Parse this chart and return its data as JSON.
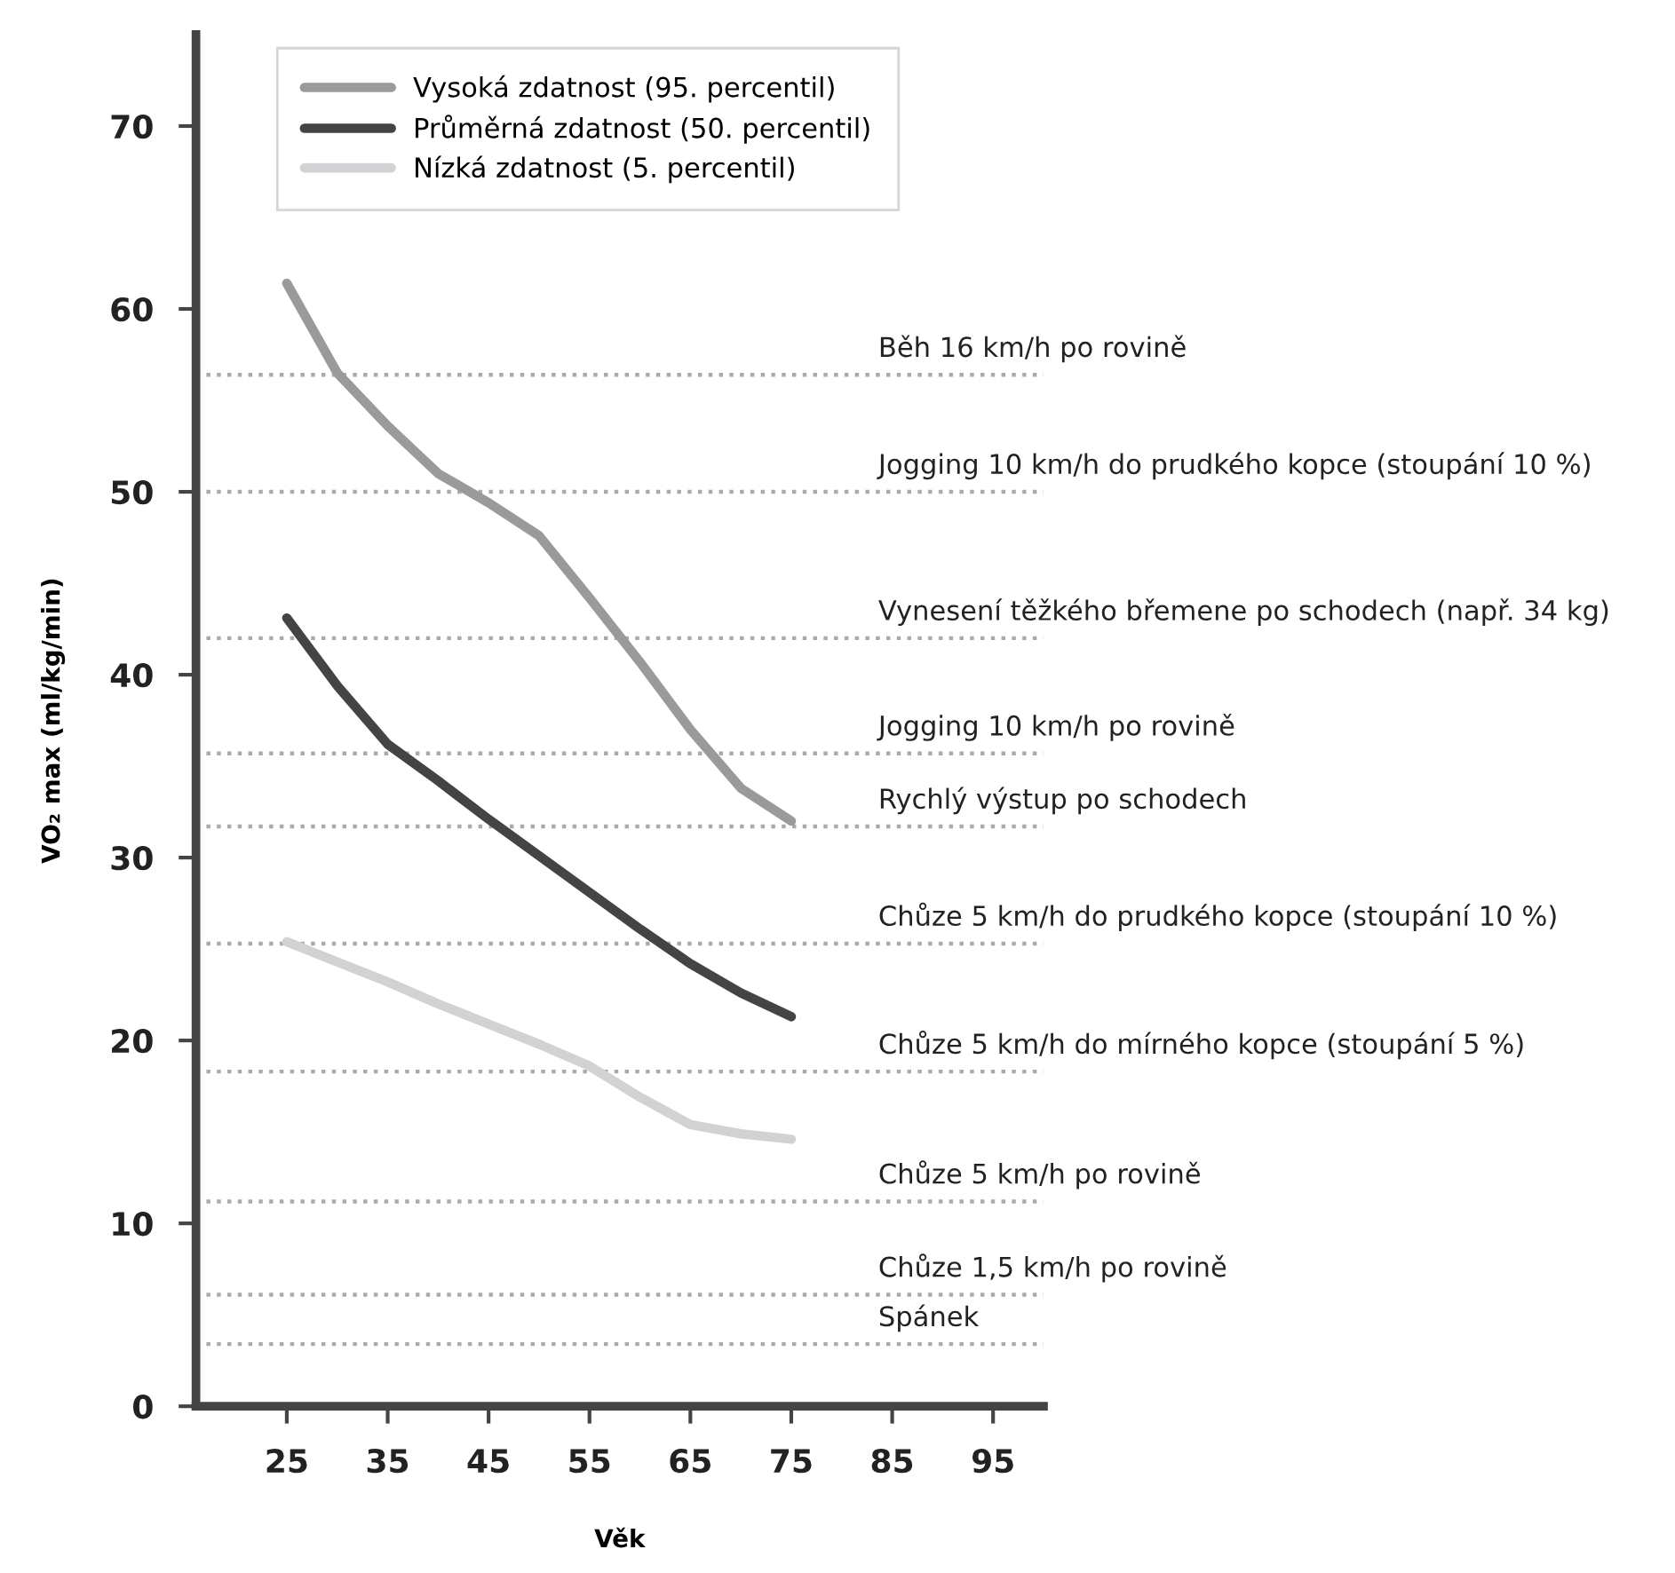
{
  "chart_data": {
    "type": "line",
    "xlabel": "Věk",
    "ylabel": "VO₂ max (ml/kg/min)",
    "x": [
      25,
      30,
      35,
      40,
      45,
      50,
      55,
      60,
      65,
      70,
      75
    ],
    "series": [
      {
        "name": "Vysoká zdatnost (95. percentil)",
        "color": "#9a9a9c",
        "values": [
          61.4,
          56.5,
          53.6,
          51.0,
          49.4,
          47.6,
          44.2,
          40.7,
          37.0,
          33.8,
          32.0
        ]
      },
      {
        "name": "Průměrná zdatnost (50. percentil)",
        "color": "#444446",
        "values": [
          43.1,
          39.4,
          36.2,
          34.2,
          32.1,
          30.1,
          28.1,
          26.1,
          24.2,
          22.6,
          21.3
        ]
      },
      {
        "name": "Nízká zdatnost (5. percentil)",
        "color": "#d2d2d4",
        "values": [
          25.4,
          24.3,
          23.2,
          22.0,
          20.9,
          19.8,
          18.6,
          16.9,
          15.4,
          14.9,
          14.6
        ]
      }
    ],
    "xlim": [
      16,
      100
    ],
    "ylim": [
      0,
      75
    ],
    "xticks": [
      25,
      35,
      45,
      55,
      65,
      75,
      85,
      95
    ],
    "yticks": [
      0,
      10,
      20,
      30,
      40,
      50,
      60,
      70
    ],
    "ref_lines": [
      {
        "axis": "y",
        "value": 56.4,
        "label": "Běh 16 km/h po rovině",
        "color": "#aaaaaa",
        "line_style": "dotted"
      },
      {
        "axis": "y",
        "value": 50.0,
        "label": "Jogging 10 km/h do prudkého kopce (stoupání 10 %)",
        "color": "#aaaaaa",
        "line_style": "dotted"
      },
      {
        "axis": "y",
        "value": 42.0,
        "label": "Vynesení těžkého břemene po schodech (např. 34 kg)",
        "color": "#aaaaaa",
        "line_style": "dotted"
      },
      {
        "axis": "y",
        "value": 35.7,
        "label": "Jogging 10 km/h po rovině",
        "color": "#aaaaaa",
        "line_style": "dotted"
      },
      {
        "axis": "y",
        "value": 31.7,
        "label": "Rychlý výstup po schodech",
        "color": "#aaaaaa",
        "line_style": "dotted"
      },
      {
        "axis": "y",
        "value": 25.3,
        "label": "Chůze 5 km/h do prudkého kopce (stoupání 10 %)",
        "color": "#aaaaaa",
        "line_style": "dotted"
      },
      {
        "axis": "y",
        "value": 18.3,
        "label": "Chůze 5 km/h do mírného kopce (stoupání 5 %)",
        "color": "#aaaaaa",
        "line_style": "dotted"
      },
      {
        "axis": "y",
        "value": 11.2,
        "label": "Chůze 5 km/h po rovině",
        "color": "#aaaaaa",
        "line_style": "dotted"
      },
      {
        "axis": "y",
        "value": 6.1,
        "label": "Chůze 1,5 km/h po rovině",
        "color": "#aaaaaa",
        "line_style": "dotted"
      },
      {
        "axis": "y",
        "value": 3.4,
        "label": "Spánek",
        "color": "#aaaaaa",
        "line_style": "dotted"
      }
    ],
    "grid": false,
    "legend": "top left",
    "marker": "none",
    "line_style": "solid"
  }
}
